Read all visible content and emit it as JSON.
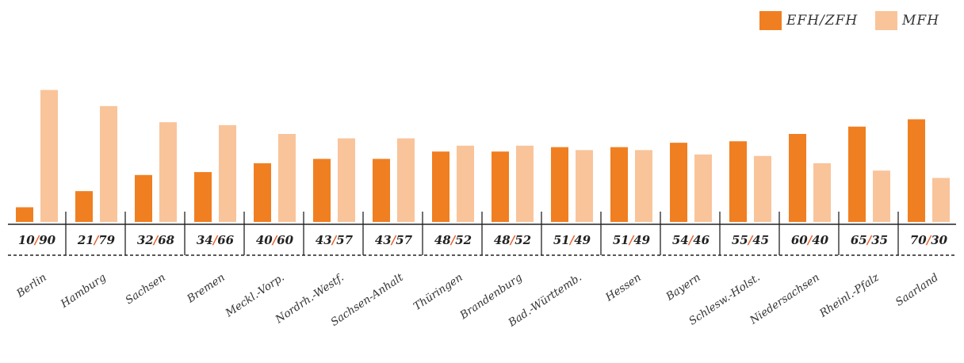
{
  "chart_data": {
    "type": "bar",
    "categories": [
      "Berlin",
      "Hamburg",
      "Sachsen",
      "Bremen",
      "Meckl.-Vorp.",
      "Nordrh.-Westf.",
      "Sachsen-Anhalt",
      "Thüringen",
      "Brandenburg",
      "Bad.-Württemb.",
      "Hessen",
      "Bayern",
      "Schlesw.-Holst.",
      "Niedersachsen",
      "Rheinl.-Pfalz",
      "Saarland"
    ],
    "series": [
      {
        "name": "EFH/ZFH",
        "color": "#f07f22",
        "values": [
          10,
          21,
          32,
          34,
          40,
          43,
          43,
          48,
          48,
          51,
          51,
          54,
          55,
          60,
          65,
          70
        ]
      },
      {
        "name": "MFH",
        "color": "#f9c49a",
        "values": [
          90,
          79,
          68,
          66,
          60,
          57,
          57,
          52,
          52,
          49,
          49,
          46,
          45,
          40,
          35,
          30
        ]
      }
    ],
    "value_labels": [
      "10/90",
      "21/79",
      "32/68",
      "34/66",
      "40/60",
      "43/57",
      "43/57",
      "48/52",
      "48/52",
      "51/49",
      "51/49",
      "54/46",
      "55/45",
      "60/40",
      "65/35",
      "70/30"
    ],
    "separator": "/",
    "separator_color": "#e8602a",
    "legend_position": "top-right",
    "ylim": [
      0,
      100
    ],
    "grid": false
  }
}
